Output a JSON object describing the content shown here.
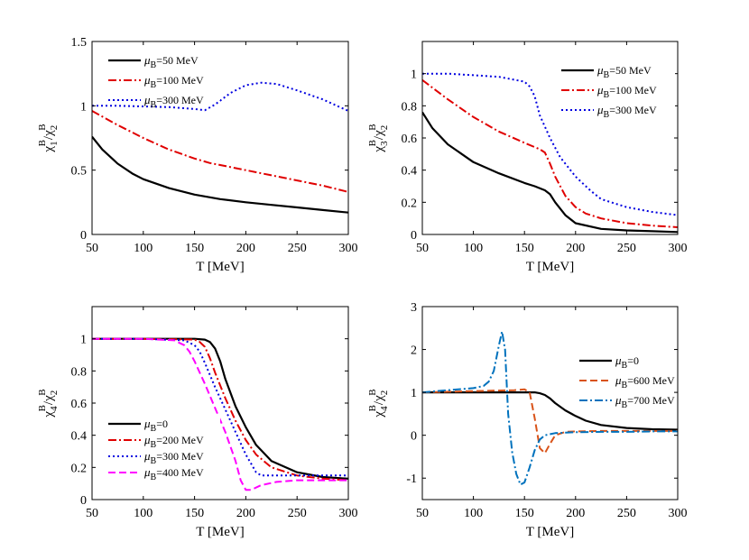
{
  "chart_data": [
    {
      "type": "line",
      "xlabel": "T [MeV]",
      "ylabel": {
        "main": "χ",
        "sub1": "1",
        "sup1": "B",
        "slash": "/χ",
        "sub2": "2",
        "sup2": "B"
      },
      "xlim": [
        50,
        300
      ],
      "ylim": [
        0,
        1.5
      ],
      "xticks": [
        "50",
        "100",
        "150",
        "200",
        "250",
        "300"
      ],
      "yticks": [
        "0",
        "0.5",
        "1",
        "1.5"
      ],
      "ytick_values": [
        0,
        0.5,
        1,
        1.5
      ],
      "legend_position": "top-left",
      "series": [
        {
          "name_mu": "μ",
          "name_sub": "B",
          "name_rest": "=50 MeV",
          "color": "#000000",
          "style": "solid",
          "x": [
            50,
            60,
            75,
            90,
            100,
            125,
            150,
            175,
            200,
            225,
            250,
            275,
            300
          ],
          "y": [
            0.76,
            0.66,
            0.55,
            0.47,
            0.43,
            0.36,
            0.31,
            0.275,
            0.25,
            0.23,
            0.21,
            0.19,
            0.17
          ]
        },
        {
          "name_mu": "μ",
          "name_sub": "B",
          "name_rest": "=100 MeV",
          "color": "#e00000",
          "style": "dashdot",
          "x": [
            50,
            75,
            100,
            125,
            150,
            165,
            175,
            200,
            225,
            250,
            275,
            300
          ],
          "y": [
            0.96,
            0.85,
            0.75,
            0.66,
            0.59,
            0.555,
            0.54,
            0.5,
            0.46,
            0.42,
            0.38,
            0.33
          ]
        },
        {
          "name_mu": "μ",
          "name_sub": "B",
          "name_rest": "=300 MeV",
          "color": "#0000e0",
          "style": "dotted",
          "x": [
            50,
            75,
            100,
            125,
            150,
            160,
            170,
            185,
            200,
            215,
            230,
            250,
            275,
            300
          ],
          "y": [
            1.0,
            1.0,
            0.995,
            0.99,
            0.975,
            0.965,
            1.01,
            1.1,
            1.16,
            1.18,
            1.17,
            1.12,
            1.05,
            0.96
          ]
        }
      ]
    },
    {
      "type": "line",
      "xlabel": "T [MeV]",
      "ylabel": {
        "main": "χ",
        "sub1": "3",
        "sup1": "B",
        "slash": "/χ",
        "sub2": "2",
        "sup2": "B"
      },
      "xlim": [
        50,
        300
      ],
      "ylim": [
        0,
        1.2
      ],
      "xticks": [
        "50",
        "100",
        "150",
        "200",
        "250",
        "300"
      ],
      "yticks": [
        "0",
        "0.2",
        "0.4",
        "0.6",
        "0.8",
        "1"
      ],
      "ytick_values": [
        0,
        0.2,
        0.4,
        0.6,
        0.8,
        1
      ],
      "legend_position": "top-right",
      "series": [
        {
          "name_mu": "μ",
          "name_sub": "B",
          "name_rest": "=50 MeV",
          "color": "#000000",
          "style": "solid",
          "x": [
            50,
            60,
            75,
            100,
            125,
            150,
            160,
            170,
            175,
            180,
            190,
            200,
            225,
            250,
            275,
            300
          ],
          "y": [
            0.76,
            0.66,
            0.56,
            0.45,
            0.38,
            0.32,
            0.3,
            0.275,
            0.25,
            0.2,
            0.12,
            0.07,
            0.035,
            0.025,
            0.02,
            0.015
          ]
        },
        {
          "name_mu": "μ",
          "name_sub": "B",
          "name_rest": "=100 MeV",
          "color": "#e00000",
          "style": "dashdot",
          "x": [
            50,
            75,
            100,
            125,
            150,
            165,
            170,
            175,
            180,
            190,
            200,
            210,
            225,
            250,
            275,
            300
          ],
          "y": [
            0.96,
            0.84,
            0.73,
            0.64,
            0.57,
            0.53,
            0.51,
            0.44,
            0.36,
            0.24,
            0.17,
            0.13,
            0.1,
            0.07,
            0.055,
            0.045
          ]
        },
        {
          "name_mu": "μ",
          "name_sub": "B",
          "name_rest": "=300 MeV",
          "color": "#0000e0",
          "style": "dotted",
          "x": [
            50,
            75,
            100,
            125,
            150,
            155,
            160,
            165,
            175,
            185,
            200,
            215,
            225,
            250,
            275,
            300
          ],
          "y": [
            1.0,
            1.0,
            0.99,
            0.98,
            0.95,
            0.92,
            0.86,
            0.74,
            0.6,
            0.48,
            0.36,
            0.27,
            0.22,
            0.17,
            0.14,
            0.12
          ]
        }
      ]
    },
    {
      "type": "line",
      "xlabel": "T [MeV]",
      "ylabel": {
        "main": "χ",
        "sub1": "4",
        "sup1": "B",
        "slash": "/χ",
        "sub2": "2",
        "sup2": "B"
      },
      "xlim": [
        50,
        300
      ],
      "ylim": [
        0,
        1.2
      ],
      "xticks": [
        "50",
        "100",
        "150",
        "200",
        "250",
        "300"
      ],
      "yticks": [
        "0",
        "0.2",
        "0.4",
        "0.6",
        "0.8",
        "1"
      ],
      "ytick_values": [
        0,
        0.2,
        0.4,
        0.6,
        0.8,
        1
      ],
      "legend_position": "bottom-left",
      "series": [
        {
          "name_mu": "μ",
          "name_sub": "B",
          "name_rest": "=0",
          "color": "#000000",
          "style": "solid",
          "x": [
            50,
            100,
            150,
            160,
            165,
            170,
            175,
            180,
            190,
            200,
            210,
            225,
            250,
            275,
            300
          ],
          "y": [
            1.0,
            1.0,
            1.0,
            0.995,
            0.98,
            0.94,
            0.86,
            0.75,
            0.58,
            0.45,
            0.34,
            0.24,
            0.17,
            0.14,
            0.13
          ]
        },
        {
          "name_mu": "μ",
          "name_sub": "B",
          "name_rest": "=200 MeV",
          "color": "#e00000",
          "style": "dashdot",
          "x": [
            50,
            100,
            150,
            155,
            160,
            165,
            170,
            180,
            190,
            200,
            210,
            225,
            250,
            275,
            300
          ],
          "y": [
            1.0,
            1.0,
            0.995,
            0.98,
            0.95,
            0.88,
            0.79,
            0.63,
            0.49,
            0.37,
            0.28,
            0.2,
            0.15,
            0.13,
            0.12
          ]
        },
        {
          "name_mu": "μ",
          "name_sub": "B",
          "name_rest": "=300 MeV",
          "color": "#0000e0",
          "style": "dotted",
          "x": [
            50,
            100,
            140,
            150,
            155,
            160,
            170,
            180,
            190,
            200,
            210,
            215,
            225,
            250,
            275,
            300
          ],
          "y": [
            1.0,
            1.0,
            0.99,
            0.96,
            0.92,
            0.85,
            0.7,
            0.56,
            0.42,
            0.28,
            0.17,
            0.15,
            0.15,
            0.15,
            0.15,
            0.15
          ]
        },
        {
          "name_mu": "μ",
          "name_sub": "B",
          "name_rest": "=400 MeV",
          "color": "#ff00ff",
          "style": "dashed",
          "x": [
            50,
            100,
            130,
            140,
            145,
            150,
            160,
            170,
            180,
            190,
            195,
            200,
            205,
            215,
            230,
            250,
            275,
            300
          ],
          "y": [
            1.0,
            1.0,
            0.99,
            0.96,
            0.92,
            0.86,
            0.72,
            0.57,
            0.42,
            0.24,
            0.12,
            0.06,
            0.06,
            0.09,
            0.11,
            0.12,
            0.12,
            0.12
          ]
        }
      ]
    },
    {
      "type": "line",
      "xlabel": "T [MeV]",
      "ylabel": {
        "main": "χ",
        "sub1": "4",
        "sup1": "B",
        "slash": "/χ",
        "sub2": "2",
        "sup2": "B"
      },
      "xlim": [
        50,
        300
      ],
      "ylim": [
        -1.5,
        3
      ],
      "xticks": [
        "50",
        "100",
        "150",
        "200",
        "250",
        "300"
      ],
      "yticks": [
        "-1",
        "0",
        "1",
        "2",
        "3"
      ],
      "ytick_values": [
        -1,
        0,
        1,
        2,
        3
      ],
      "legend_position": "top-right",
      "series": [
        {
          "name_mu": "μ",
          "name_sub": "B",
          "name_rest": "=0",
          "color": "#000000",
          "style": "solid",
          "x": [
            50,
            100,
            150,
            160,
            165,
            170,
            175,
            180,
            190,
            200,
            210,
            225,
            250,
            275,
            300
          ],
          "y": [
            1.0,
            1.0,
            1.0,
            1.0,
            0.98,
            0.94,
            0.86,
            0.75,
            0.58,
            0.45,
            0.34,
            0.24,
            0.17,
            0.14,
            0.13
          ]
        },
        {
          "name_mu": "μ",
          "name_sub": "B",
          "name_rest": "=600 MeV",
          "color": "#d95319",
          "style": "dashed",
          "x": [
            50,
            100,
            140,
            150,
            155,
            160,
            165,
            170,
            175,
            180,
            190,
            200,
            225,
            250,
            275,
            300
          ],
          "y": [
            1.0,
            1.03,
            1.05,
            1.07,
            1.0,
            0.4,
            -0.3,
            -0.42,
            -0.2,
            0.0,
            0.08,
            0.09,
            0.1,
            0.1,
            0.1,
            0.1
          ]
        },
        {
          "name_mu": "μ",
          "name_sub": "B",
          "name_rest": "=700 MeV",
          "color": "#0072bd",
          "style": "dashdot",
          "x": [
            50,
            75,
            100,
            110,
            115,
            120,
            125,
            128,
            131,
            134,
            138,
            142,
            146,
            150,
            155,
            160,
            165,
            170,
            180,
            190,
            200,
            225,
            250,
            275,
            300
          ],
          "y": [
            1.0,
            1.05,
            1.1,
            1.15,
            1.25,
            1.5,
            2.1,
            2.42,
            2.0,
            0.5,
            -0.4,
            -0.9,
            -1.15,
            -1.1,
            -0.75,
            -0.35,
            -0.1,
            0.0,
            0.05,
            0.06,
            0.07,
            0.08,
            0.08,
            0.09,
            0.09
          ]
        }
      ]
    }
  ]
}
